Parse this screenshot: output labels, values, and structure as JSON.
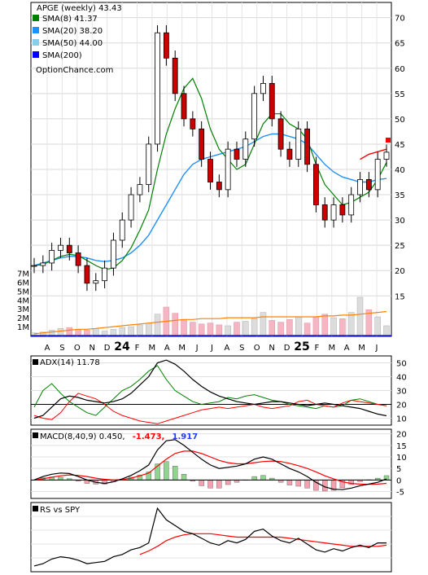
{
  "chart_data": [
    {
      "type": "candlestick",
      "panel": "price",
      "header": "APGE (weekly) 43.43",
      "legend": [
        {
          "label": "SMA(8) 41.37",
          "color": "#008000"
        },
        {
          "label": "SMA(20) 38.20",
          "color": "#1e90ff"
        },
        {
          "label": "SMA(50) 44.00",
          "color": "#87ceeb"
        },
        {
          "label": "SMA(200)",
          "color": "#0000ff"
        }
      ],
      "watermark": "OptionChance.com",
      "y_ticks": [
        "70",
        "65",
        "60",
        "55",
        "50",
        "45",
        "40",
        "35",
        "30",
        "25",
        "20",
        "15"
      ],
      "y_range": [
        7,
        73
      ],
      "x_labels": [
        "A",
        "S",
        "O",
        "N",
        "D",
        "24",
        "F",
        "M",
        "A",
        "M",
        "J",
        "J",
        "A",
        "S",
        "O",
        "N",
        "D",
        "25",
        "F",
        "M",
        "A",
        "M",
        "J"
      ],
      "volume_ticks": [
        "7M",
        "6M",
        "5M",
        "4M",
        "3M",
        "2M",
        "1M"
      ],
      "volume_range_millions": [
        0,
        7.5
      ],
      "current_price": 43.43,
      "close": [
        21.0,
        21.5,
        24.0,
        25.0,
        23.5,
        21.0,
        17.5,
        18.0,
        20.5,
        26.0,
        30.0,
        35.0,
        37.0,
        45.0,
        67.0,
        62.0,
        55.0,
        50.0,
        48.0,
        42.0,
        37.5,
        36.0,
        44.0,
        42.0,
        46.0,
        55.0,
        57.0,
        50.0,
        44.0,
        42.0,
        48.0,
        41.0,
        33.0,
        30.0,
        33.0,
        31.0,
        35.0,
        38.0,
        36.0,
        42.0,
        43.4
      ],
      "sma8": [
        21.0,
        21.2,
        22.0,
        22.8,
        23.2,
        23.0,
        22.0,
        21.0,
        20.2,
        20.5,
        22.0,
        24.5,
        28.0,
        32.0,
        40.0,
        47.0,
        52.0,
        56.0,
        58.0,
        54.0,
        48.0,
        44.0,
        42.0,
        40.0,
        41.0,
        45.0,
        49.0,
        51.0,
        51.0,
        49.0,
        48.0,
        46.0,
        41.0,
        37.0,
        35.0,
        33.0,
        33.5,
        34.5,
        35.5,
        38.0,
        41.37
      ],
      "sma20": [
        21.0,
        21.5,
        22.0,
        22.5,
        22.8,
        22.8,
        22.5,
        22.0,
        21.8,
        22.0,
        22.5,
        23.5,
        25.0,
        27.0,
        30.0,
        33.0,
        36.0,
        39.0,
        41.0,
        42.0,
        42.5,
        43.0,
        43.5,
        44.0,
        44.5,
        45.5,
        46.5,
        47.0,
        47.0,
        46.5,
        46.0,
        45.0,
        43.0,
        41.0,
        39.5,
        38.5,
        38.0,
        37.5,
        37.5,
        38.0,
        38.2
      ],
      "sma50": [
        null,
        null,
        null,
        null,
        null,
        null,
        null,
        null,
        null,
        null,
        null,
        null,
        null,
        null,
        null,
        null,
        null,
        null,
        null,
        null,
        null,
        null,
        null,
        null,
        null,
        null,
        null,
        null,
        null,
        null,
        null,
        null,
        null,
        null,
        null,
        null,
        null,
        42.0,
        43.0,
        43.5,
        44.0
      ],
      "volume_millions": [
        0.3,
        0.4,
        0.6,
        0.8,
        0.9,
        0.7,
        0.6,
        0.8,
        0.5,
        0.7,
        0.9,
        1.0,
        1.2,
        1.4,
        2.4,
        3.2,
        2.5,
        1.8,
        1.5,
        1.3,
        1.4,
        1.2,
        1.1,
        1.5,
        1.6,
        1.9,
        2.6,
        1.7,
        1.5,
        1.8,
        2.1,
        1.4,
        2.1,
        2.4,
        2.0,
        1.9,
        2.6,
        4.3,
        2.9,
        2.1,
        1.1
      ],
      "volume_sma_millions": [
        0.2,
        0.3,
        0.4,
        0.5,
        0.6,
        0.7,
        0.7,
        0.8,
        0.9,
        1.0,
        1.1,
        1.2,
        1.3,
        1.4,
        1.5,
        1.6,
        1.7,
        1.8,
        1.8,
        1.9,
        1.9,
        1.9,
        2.0,
        2.0,
        2.0,
        2.0,
        2.1,
        2.1,
        2.1,
        2.1,
        2.1,
        2.1,
        2.1,
        2.2,
        2.2,
        2.3,
        2.3,
        2.4,
        2.5,
        2.6,
        2.7
      ]
    },
    {
      "type": "line",
      "panel": "adx",
      "label": "ADX(14) 11.78",
      "y_ticks": [
        "50",
        "40",
        "30",
        "20",
        "10"
      ],
      "y_range": [
        5,
        55
      ],
      "reference_line": 20,
      "series": [
        {
          "values": [
            10,
            12,
            18,
            24,
            26,
            25,
            23,
            22,
            21,
            22,
            24,
            28,
            34,
            40,
            50,
            52,
            49,
            44,
            38,
            33,
            29,
            26,
            24,
            22,
            21,
            20,
            21,
            22,
            22,
            21,
            20,
            19,
            20,
            21,
            20,
            19,
            18,
            17,
            15,
            13,
            11.78
          ]
        },
        {
          "values": [
            18,
            30,
            35,
            28,
            22,
            18,
            14,
            12,
            18,
            24,
            30,
            33,
            38,
            44,
            48,
            38,
            30,
            26,
            22,
            20,
            21,
            22,
            25,
            24,
            26,
            27,
            25,
            23,
            22,
            20,
            19,
            18,
            17,
            19,
            18,
            19,
            23,
            24,
            22,
            20,
            19
          ]
        },
        {
          "values": [
            12,
            10,
            9,
            14,
            22,
            28,
            26,
            24,
            20,
            15,
            12,
            10,
            8,
            7,
            6,
            8,
            10,
            12,
            14,
            16,
            17,
            18,
            17,
            18,
            19,
            20,
            18,
            17,
            18,
            19,
            22,
            23,
            20,
            19,
            18,
            21,
            23,
            22,
            21,
            20,
            19
          ]
        }
      ]
    },
    {
      "type": "line",
      "panel": "macd",
      "label": "MACD(8,40,9) 0.450,",
      "labels_colored": [
        {
          "text": "-1.473,",
          "color": "#ff0000"
        },
        {
          "text": "1.917",
          "color": "#1e3cff"
        }
      ],
      "y_ticks": [
        "20",
        "15",
        "10",
        "5",
        "0",
        "-5"
      ],
      "y_range": [
        -8,
        22
      ],
      "series": [
        {
          "values": [
            0,
            1.5,
            2.5,
            3.0,
            2.8,
            1.5,
            0.0,
            -1.0,
            -1.5,
            -0.8,
            0.5,
            2.0,
            4.0,
            6.5,
            13.0,
            17.0,
            17.5,
            15.0,
            12.0,
            9.0,
            6.5,
            5.0,
            5.5,
            6.0,
            7.0,
            9.0,
            10.0,
            9.0,
            7.0,
            5.0,
            3.5,
            1.5,
            -1.0,
            -3.0,
            -4.0,
            -4.2,
            -3.5,
            -2.5,
            -1.8,
            -1.0,
            0.45
          ]
        },
        {
          "values": [
            0,
            0.5,
            1.2,
            1.8,
            2.2,
            2.0,
            1.5,
            0.8,
            0.3,
            0.0,
            0.2,
            0.8,
            1.8,
            3.0,
            6.0,
            9.0,
            11.5,
            12.5,
            12.5,
            11.5,
            10.0,
            8.5,
            7.5,
            7.0,
            7.0,
            7.5,
            8.0,
            8.2,
            8.0,
            7.2,
            6.2,
            5.0,
            3.5,
            1.8,
            0.5,
            -0.8,
            -1.5,
            -1.8,
            -1.9,
            -1.8,
            -1.47
          ]
        }
      ],
      "histogram": [
        0,
        1.0,
        1.3,
        1.2,
        0.6,
        -0.5,
        -1.5,
        -1.8,
        -1.8,
        -0.8,
        0.3,
        1.2,
        2.2,
        3.5,
        7.0,
        8.0,
        6.0,
        2.5,
        -0.5,
        -2.5,
        -3.5,
        -3.5,
        -2.0,
        -1.0,
        0.0,
        1.5,
        2.0,
        0.8,
        -1.0,
        -2.2,
        -2.7,
        -3.5,
        -4.5,
        -4.8,
        -4.5,
        -3.4,
        -2.0,
        -0.7,
        0.1,
        0.8,
        1.9
      ]
    },
    {
      "type": "line",
      "panel": "relative_strength",
      "label": "RS vs SPY",
      "series": [
        {
          "values": [
            10,
            12,
            16,
            18,
            17,
            15,
            12,
            13,
            14,
            18,
            20,
            24,
            26,
            30,
            60,
            50,
            45,
            40,
            38,
            34,
            30,
            28,
            32,
            30,
            33,
            40,
            42,
            36,
            32,
            30,
            34,
            29,
            24,
            22,
            25,
            23,
            26,
            28,
            26,
            30,
            30
          ]
        },
        {
          "values": [
            null,
            null,
            null,
            null,
            null,
            null,
            null,
            null,
            null,
            null,
            null,
            null,
            20,
            23,
            27,
            32,
            35,
            37,
            38,
            38,
            38,
            37,
            36,
            35,
            35,
            35,
            35,
            35,
            35,
            34,
            33,
            32,
            31,
            30,
            29,
            28,
            27,
            27,
            27,
            27,
            28
          ]
        }
      ]
    }
  ]
}
